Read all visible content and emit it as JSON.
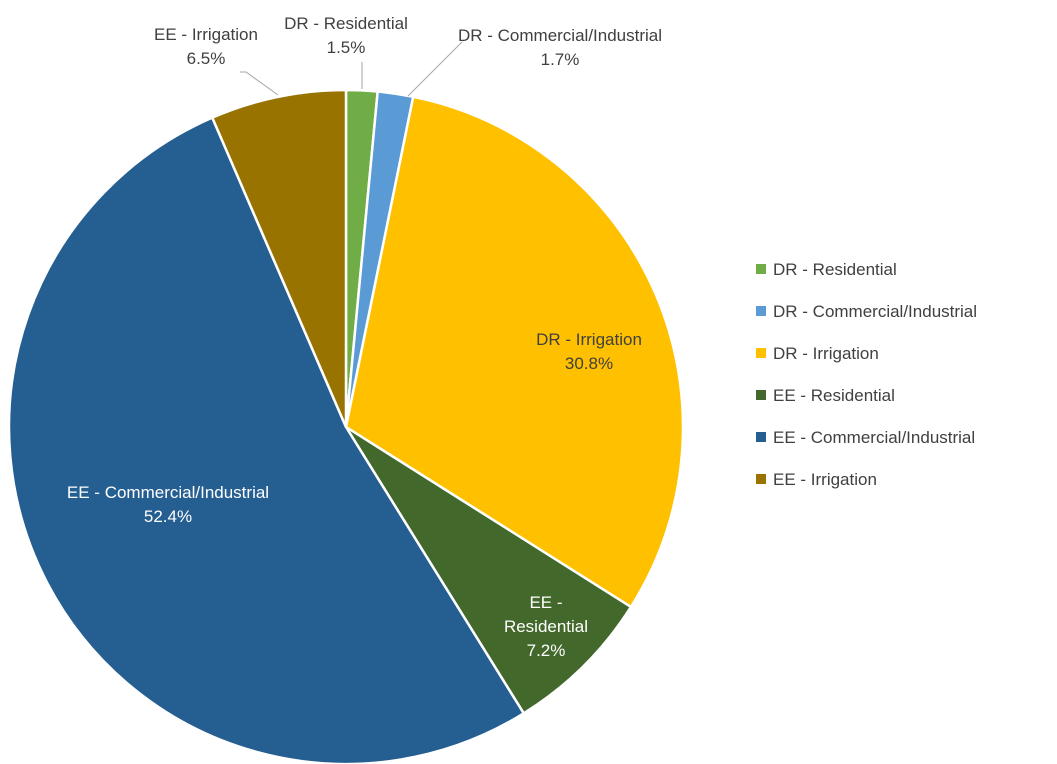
{
  "chart_data": {
    "type": "pie",
    "categories": [
      "DR - Residential",
      "DR - Commercial/Industrial",
      "DR - Irrigation",
      "EE - Residential",
      "EE - Commercial/Industrial",
      "EE - Irrigation"
    ],
    "values": [
      1.5,
      1.7,
      30.8,
      7.2,
      52.4,
      6.5
    ],
    "value_labels": [
      "1.5%",
      "1.7%",
      "30.8%",
      "7.2%",
      "52.4%",
      "6.5%"
    ],
    "colors": [
      "#70ad47",
      "#5b9bd5",
      "#ffc000",
      "#43682b",
      "#255e91",
      "#997300"
    ],
    "legend": "right"
  }
}
